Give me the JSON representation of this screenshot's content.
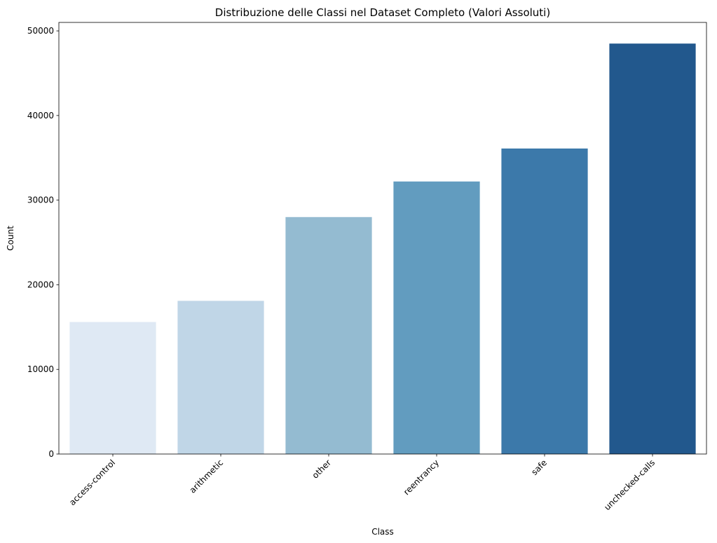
{
  "chart_data": {
    "type": "bar",
    "title": "Distribuzione delle Classi nel Dataset Completo (Valori Assoluti)",
    "xlabel": "Class",
    "ylabel": "Count",
    "categories": [
      "access-control",
      "arithmetic",
      "other",
      "reentrancy",
      "safe",
      "unchecked-calls"
    ],
    "values": [
      15600,
      18100,
      28000,
      32200,
      36100,
      48500
    ],
    "colors": [
      "#dfe9f4",
      "#c0d6e7",
      "#94bbd1",
      "#629cbf",
      "#3c79aa",
      "#22588d"
    ],
    "ylim": [
      0,
      51000
    ],
    "yticks": [
      0,
      10000,
      20000,
      30000,
      40000,
      50000
    ],
    "ytick_labels": [
      "0",
      "10000",
      "20000",
      "30000",
      "40000",
      "50000"
    ],
    "grid": false,
    "xtick_rotation": 45
  }
}
